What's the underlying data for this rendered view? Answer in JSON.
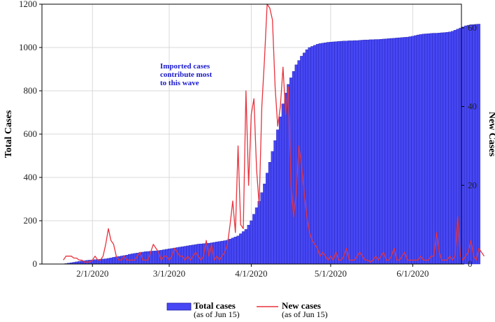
{
  "chart_data": {
    "type": "bar+line",
    "x_start": "1/21/2020",
    "x_end": "6/15/2020",
    "x_ticks": [
      "2/1/2020",
      "3/1/2020",
      "4/1/2020",
      "5/1/2020",
      "6/1/2020"
    ],
    "y_left": {
      "label": "Total Cases",
      "range": [
        0,
        1200
      ],
      "ticks": [
        0,
        200,
        400,
        600,
        800,
        1000,
        1200
      ]
    },
    "y_right": {
      "label": "New Cases",
      "range": [
        0,
        66
      ],
      "ticks": [
        0,
        20,
        40,
        60
      ]
    },
    "grid": true,
    "annotation": {
      "lines": [
        "Imported cases",
        "contribute most",
        "to this wave"
      ]
    },
    "legend": {
      "position": "bottom",
      "entries": [
        {
          "label": "Total cases",
          "sub": "(as of Jun 15)",
          "marker": "bar"
        },
        {
          "label": "New cases",
          "sub": "(as of Jun 15)",
          "marker": "line"
        }
      ]
    },
    "colors": {
      "bar_fill": "#4747f5",
      "bar_stroke": "#1c1ca8",
      "line": "#e8323c",
      "grid": "#d9d9d9",
      "annotation": "#1a1acc"
    },
    "series": [
      {
        "name": "Total cases",
        "type": "bar",
        "axis": "left",
        "start": "1/21/2020",
        "values": [
          1,
          2,
          4,
          6,
          8,
          10,
          12,
          14,
          15,
          17,
          18,
          19,
          20,
          21,
          22,
          23,
          24,
          26,
          28,
          31,
          33,
          35,
          37,
          39,
          41,
          45,
          47,
          49,
          51,
          53,
          55,
          57,
          58,
          59,
          60,
          61,
          62,
          64,
          66,
          68,
          70,
          72,
          74,
          76,
          78,
          80,
          82,
          84,
          86,
          88,
          90,
          92,
          93,
          94,
          95,
          96,
          98,
          100,
          102,
          104,
          106,
          108,
          110,
          115,
          120,
          125,
          130,
          140,
          150,
          160,
          180,
          200,
          230,
          260,
          290,
          330,
          370,
          420,
          470,
          520,
          570,
          620,
          680,
          740,
          790,
          830,
          860,
          890,
          920,
          940,
          960,
          975,
          990,
          1000,
          1005,
          1010,
          1015,
          1018,
          1020,
          1022,
          1024,
          1025,
          1026,
          1027,
          1028,
          1029,
          1030,
          1030,
          1031,
          1031,
          1032,
          1032,
          1033,
          1034,
          1035,
          1035,
          1036,
          1036,
          1037,
          1037,
          1038,
          1039,
          1040,
          1041,
          1042,
          1043,
          1044,
          1045,
          1046,
          1047,
          1048,
          1050,
          1052,
          1055,
          1058,
          1060,
          1062,
          1063,
          1064,
          1065,
          1066,
          1066,
          1067,
          1068,
          1069,
          1070,
          1072,
          1075,
          1080,
          1085,
          1090,
          1095,
          1100,
          1103,
          1105,
          1106,
          1107,
          1108
        ]
      },
      {
        "name": "New cases",
        "type": "line",
        "axis": "right",
        "start": "1/21/2020",
        "values": [
          1,
          2,
          2,
          2,
          1.5,
          1.5,
          1,
          1,
          0.5,
          0.5,
          0.5,
          1,
          2,
          1,
          1,
          2,
          5,
          9,
          6,
          5,
          2,
          1,
          1,
          2,
          1,
          1,
          1,
          1,
          2,
          3,
          1,
          1,
          1,
          3,
          5,
          4,
          3,
          1,
          2,
          2,
          1,
          2,
          4,
          3,
          2,
          2,
          1,
          2,
          1,
          2,
          3,
          2,
          1,
          2,
          6,
          2,
          5,
          1,
          2,
          1,
          2,
          3,
          5,
          10,
          16,
          8,
          30,
          10,
          9,
          44,
          20,
          38,
          42,
          24,
          15,
          40,
          52,
          66,
          65,
          62,
          45,
          35,
          40,
          50,
          38,
          45,
          20,
          12,
          18,
          30,
          25,
          18,
          12,
          8,
          6,
          5,
          4,
          2,
          3,
          2,
          1,
          2,
          1,
          3,
          1,
          1,
          2,
          4,
          1,
          1,
          1,
          2,
          3,
          2,
          1,
          1,
          0.5,
          1,
          2,
          1,
          2,
          3,
          1,
          1,
          2,
          4,
          1,
          1,
          2,
          3,
          1,
          1,
          1,
          1,
          1,
          2,
          1,
          1,
          1,
          2,
          2,
          8,
          3,
          1,
          1,
          1,
          2,
          1,
          2,
          12,
          2,
          1,
          2,
          3,
          6,
          2,
          1,
          4,
          3,
          2
        ]
      }
    ]
  }
}
